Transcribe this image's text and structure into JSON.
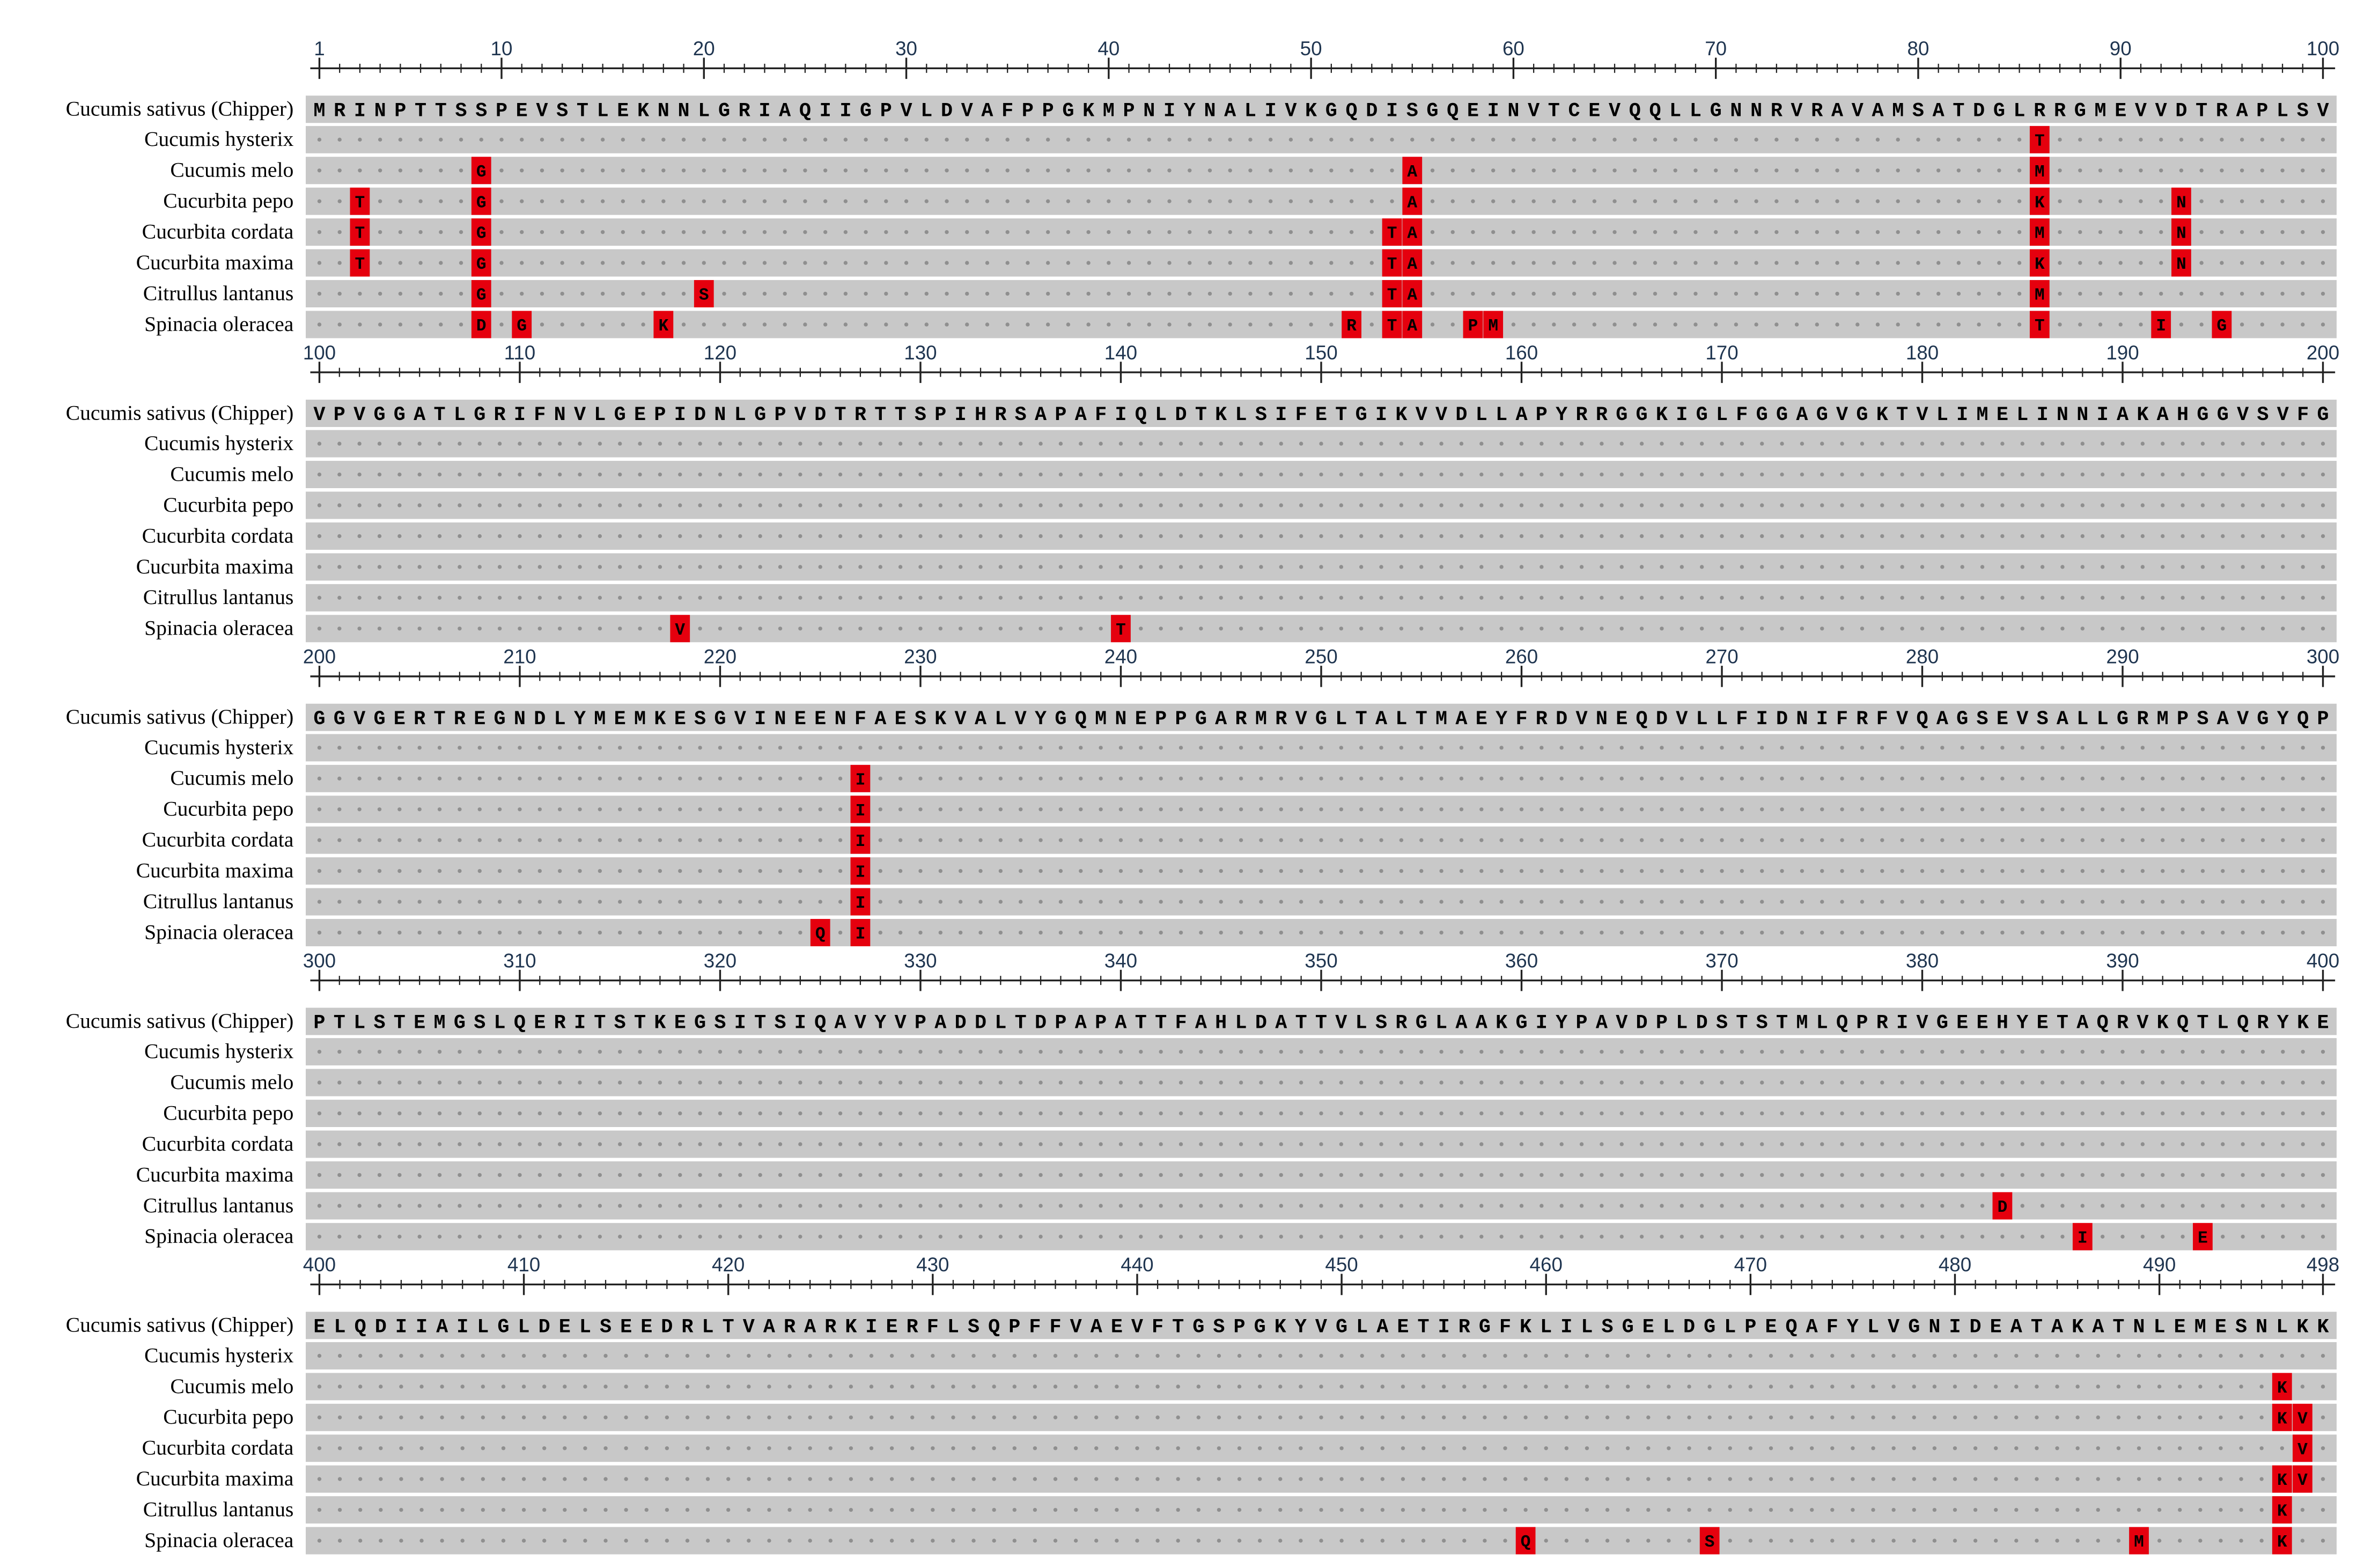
{
  "species": [
    "Cucumis sativus (Chipper)",
    "Cucumis hysterix",
    "Cucumis melo",
    "Cucurbita pepo",
    "Cucurbita cordata",
    "Cucurbita maxima",
    "Citrullus lantanus",
    "Spinacia oleracea"
  ],
  "blocks": [
    {
      "ticks": [
        1,
        10,
        20,
        30,
        40,
        50,
        60,
        70,
        80,
        90,
        100
      ],
      "reference": "MRINPTTSSPEVSTLEKNNLGRIAQIIGPVLDVAFPPGKMPNIYNALIVKGQDISGQEINVTCEVQQLLGNNRVRAVAMSATDGLRRGMEVVDTRAPLSV",
      "variants": [
        [
          {
            "pos": 86,
            "aa": "T"
          }
        ],
        [
          {
            "pos": 9,
            "aa": "G"
          },
          {
            "pos": 55,
            "aa": "A"
          },
          {
            "pos": 86,
            "aa": "M"
          }
        ],
        [
          {
            "pos": 3,
            "aa": "T"
          },
          {
            "pos": 9,
            "aa": "G"
          },
          {
            "pos": 55,
            "aa": "A"
          },
          {
            "pos": 86,
            "aa": "K"
          },
          {
            "pos": 93,
            "aa": "N"
          }
        ],
        [
          {
            "pos": 3,
            "aa": "T"
          },
          {
            "pos": 9,
            "aa": "G"
          },
          {
            "pos": 54,
            "aa": "T"
          },
          {
            "pos": 55,
            "aa": "A"
          },
          {
            "pos": 86,
            "aa": "M"
          },
          {
            "pos": 93,
            "aa": "N"
          }
        ],
        [
          {
            "pos": 3,
            "aa": "T"
          },
          {
            "pos": 9,
            "aa": "G"
          },
          {
            "pos": 54,
            "aa": "T"
          },
          {
            "pos": 55,
            "aa": "A"
          },
          {
            "pos": 86,
            "aa": "K"
          },
          {
            "pos": 93,
            "aa": "N"
          }
        ],
        [
          {
            "pos": 9,
            "aa": "G"
          },
          {
            "pos": 20,
            "aa": "S"
          },
          {
            "pos": 54,
            "aa": "T"
          },
          {
            "pos": 55,
            "aa": "A"
          },
          {
            "pos": 86,
            "aa": "M"
          }
        ],
        [
          {
            "pos": 9,
            "aa": "D"
          },
          {
            "pos": 11,
            "aa": "G"
          },
          {
            "pos": 18,
            "aa": "K"
          },
          {
            "pos": 52,
            "aa": "R"
          },
          {
            "pos": 54,
            "aa": "T"
          },
          {
            "pos": 55,
            "aa": "A"
          },
          {
            "pos": 58,
            "aa": "P"
          },
          {
            "pos": 59,
            "aa": "M"
          },
          {
            "pos": 86,
            "aa": "T"
          },
          {
            "pos": 92,
            "aa": "I"
          },
          {
            "pos": 95,
            "aa": "G"
          }
        ]
      ]
    },
    {
      "ticks": [
        100,
        110,
        120,
        130,
        140,
        150,
        160,
        170,
        180,
        190,
        200
      ],
      "reference": "VPVGGATLGRIFNVLGEPIDNLGPVDTRTTSPIHRSAPAFIQLDTKLSIFETGIKVVDLLAPYRRGGKIGLFGGAGVGKTVLIMELINNIAKAHGGVSVFG",
      "variants": [
        [],
        [],
        [],
        [],
        [],
        [],
        [
          {
            "pos": 118,
            "aa": "V"
          },
          {
            "pos": 140,
            "aa": "T"
          }
        ]
      ]
    },
    {
      "ticks": [
        200,
        210,
        220,
        230,
        240,
        250,
        260,
        270,
        280,
        290,
        300
      ],
      "reference": "GGVGERTREGNDLYMEMKESGVINEENFAESKVALVYGQMNEPPGARMRVGLTALTMAEYFRDVNEQDVLLFIDNIFRFVQAGSEVSALLGRMPSAVGYQP",
      "variants": [
        [],
        [
          {
            "pos": 227,
            "aa": "I"
          }
        ],
        [
          {
            "pos": 227,
            "aa": "I"
          }
        ],
        [
          {
            "pos": 227,
            "aa": "I"
          }
        ],
        [
          {
            "pos": 227,
            "aa": "I"
          }
        ],
        [
          {
            "pos": 227,
            "aa": "I"
          }
        ],
        [
          {
            "pos": 225,
            "aa": "Q"
          },
          {
            "pos": 227,
            "aa": "I"
          }
        ]
      ]
    },
    {
      "ticks": [
        300,
        310,
        320,
        330,
        340,
        350,
        360,
        370,
        380,
        390,
        400
      ],
      "reference": "PTLSTEMGSLQERITSTKEGSITSIQAVYVPADDLTDPAPATTFAHLDATTVLSRGLAAKGIYPAVDPLDSTSTMLQPRIVGEEHYETAQRVKQTLQRYKE",
      "variants": [
        [],
        [],
        [],
        [],
        [],
        [
          {
            "pos": 384,
            "aa": "D"
          }
        ],
        [
          {
            "pos": 388,
            "aa": "I"
          },
          {
            "pos": 394,
            "aa": "E"
          }
        ]
      ]
    },
    {
      "ticks": [
        400,
        410,
        420,
        430,
        440,
        450,
        460,
        470,
        480,
        490,
        498
      ],
      "reference": "ELQDIIAILGLDELSEEDRLTVARARKIERFLSQPFFVAEVFTGSPGKYVGLAETIRGFKLILSGELDGLPEQAFYLVGNIDEATAKATNLEMESNLKK",
      "variants": [
        [],
        [
          {
            "pos": 496,
            "aa": "K"
          }
        ],
        [
          {
            "pos": 496,
            "aa": "K"
          },
          {
            "pos": 497,
            "aa": "V"
          }
        ],
        [
          {
            "pos": 497,
            "aa": "V"
          }
        ],
        [
          {
            "pos": 496,
            "aa": "K"
          },
          {
            "pos": 497,
            "aa": "V"
          }
        ],
        [
          {
            "pos": 496,
            "aa": "K"
          }
        ],
        [
          {
            "pos": 459,
            "aa": "Q"
          },
          {
            "pos": 468,
            "aa": "S"
          },
          {
            "pos": 489,
            "aa": "M"
          },
          {
            "pos": 496,
            "aa": "K"
          }
        ]
      ]
    }
  ]
}
